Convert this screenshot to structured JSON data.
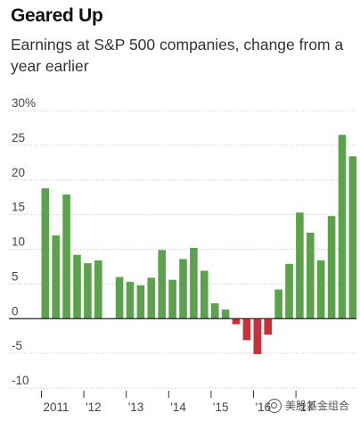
{
  "chart_data": {
    "type": "bar",
    "title": "Geared Up",
    "subtitle": "Earnings at S&P 500 companies, change from a year earlier",
    "ylim": [
      -10,
      30
    ],
    "yticks": [
      {
        "value": 30,
        "label": "30%"
      },
      {
        "value": 25,
        "label": "25"
      },
      {
        "value": 20,
        "label": "20"
      },
      {
        "value": 15,
        "label": "15"
      },
      {
        "value": 10,
        "label": "10"
      },
      {
        "value": 5,
        "label": "5"
      },
      {
        "value": 0,
        "label": "0"
      },
      {
        "value": -5,
        "label": "-5"
      },
      {
        "value": -10,
        "label": "-10"
      }
    ],
    "xticks": [
      {
        "index": 0,
        "label": "2011"
      },
      {
        "index": 4,
        "label": "'12"
      },
      {
        "index": 8,
        "label": "'13"
      },
      {
        "index": 12,
        "label": "'14"
      },
      {
        "index": 16,
        "label": "'15"
      },
      {
        "index": 20,
        "label": "'16"
      },
      {
        "index": 24,
        "label": "'17"
      }
    ],
    "values": [
      18.8,
      12.0,
      17.9,
      9.2,
      8.0,
      8.4,
      null,
      6.0,
      5.3,
      4.8,
      5.9,
      9.9,
      5.6,
      8.6,
      10.2,
      6.9,
      2.2,
      1.3,
      -0.8,
      -3.1,
      -5.1,
      -2.3,
      4.2,
      7.9,
      15.3,
      12.4,
      8.4,
      14.8,
      26.5,
      23.4
    ],
    "colors": {
      "positive": "#5ca14b",
      "negative": "#c5323b",
      "grid": "#cfcfcf",
      "zero_line": "#222222"
    }
  },
  "watermark": "美股基金组合"
}
